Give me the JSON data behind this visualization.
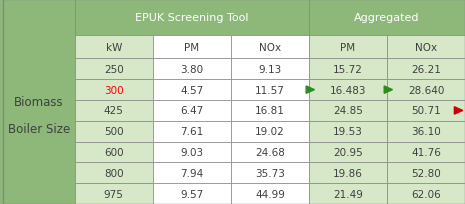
{
  "header1": [
    "",
    "EPUK Screening Tool",
    "Aggregated"
  ],
  "header2": [
    "kW",
    "PM",
    "NOx",
    "PM",
    "NOx"
  ],
  "rows": [
    [
      "250",
      "3.80",
      "9.13",
      "15.72",
      "26.21"
    ],
    [
      "300",
      "4.57",
      "11.57",
      "16.483",
      "28.640"
    ],
    [
      "425",
      "6.47",
      "16.81",
      "24.85",
      "50.71"
    ],
    [
      "500",
      "7.61",
      "19.02",
      "19.53",
      "36.10"
    ],
    [
      "600",
      "9.03",
      "24.68",
      "20.95",
      "41.76"
    ],
    [
      "800",
      "7.94",
      "35.73",
      "19.86",
      "52.80"
    ],
    [
      "975",
      "9.57",
      "44.99",
      "21.49",
      "62.06"
    ]
  ],
  "row_label": [
    "Biomass",
    "Boiler Size"
  ],
  "bg_dark_green": "#8db87a",
  "bg_light_green": "#d6e8c8",
  "bg_white": "#ffffff",
  "text_dark": "#404040",
  "text_red": "#ff0000",
  "text_green_arrow": "#2e8b20",
  "text_red_arrow": "#cc0000",
  "fig_width": 4.65,
  "fig_height": 2.05
}
